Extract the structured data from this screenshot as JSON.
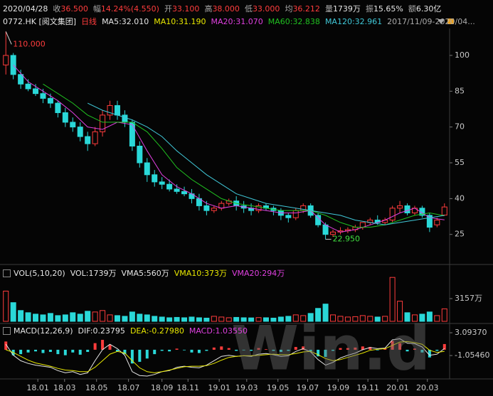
{
  "header": {
    "date": "2020/04/28",
    "quote": [
      {
        "label": "收",
        "value": "36.500",
        "color": "#ff3c3c"
      },
      {
        "label": "幅",
        "value": "14.24%(4.550)",
        "color": "#ff3c3c"
      },
      {
        "label": "开",
        "value": "33.100",
        "color": "#ff3c3c"
      },
      {
        "label": "高",
        "value": "38.000",
        "color": "#ff3c3c"
      },
      {
        "label": "低",
        "value": "33.000",
        "color": "#ff3c3c"
      },
      {
        "label": "均",
        "value": "36.212",
        "color": "#ff3c3c"
      },
      {
        "label": "量",
        "value": "1739万",
        "color": "#e6e6e6"
      },
      {
        "label": "振",
        "value": "15.65%",
        "color": "#e6e6e6"
      },
      {
        "label": "额",
        "value": "6.30亿",
        "color": "#e6e6e6"
      }
    ]
  },
  "watermark": "Win.d",
  "chart_data": [
    {
      "type": "candlestick",
      "symbol": "0772.HK [阅文集团]",
      "period": "日线",
      "range": "2017/11/09-2020/04...",
      "up_color": "#ff3c3c",
      "down_color": "#2ad8d8",
      "open": [
        96,
        100,
        92,
        88,
        86,
        84,
        82,
        80,
        76,
        72,
        70,
        66,
        63,
        68,
        75,
        79,
        75,
        72,
        62,
        55,
        50,
        47,
        46,
        44,
        43,
        42,
        40,
        37,
        35,
        36,
        38,
        39,
        37,
        36,
        35,
        37,
        36,
        35,
        33,
        32,
        35,
        37,
        33,
        29,
        25,
        26,
        26.5,
        27,
        28,
        30,
        31,
        30,
        31,
        36,
        37,
        34,
        36,
        33,
        29,
        33.1
      ],
      "high": [
        110,
        101,
        94,
        90,
        88,
        86,
        84,
        81,
        78,
        74,
        72,
        68,
        70,
        77,
        81,
        81,
        77,
        73,
        64,
        57,
        52,
        49,
        48,
        46,
        45,
        44,
        42,
        39,
        37,
        39,
        40,
        41,
        39,
        38,
        38,
        38,
        37,
        36,
        34,
        36,
        38,
        38,
        34,
        30,
        27,
        28,
        28,
        29,
        30,
        32,
        33,
        32,
        37,
        39,
        38,
        37,
        37,
        34,
        32,
        38
      ],
      "low": [
        92,
        90,
        86,
        85,
        83,
        80,
        78,
        74,
        70,
        68,
        64,
        60,
        62,
        66,
        73,
        73,
        70,
        60,
        53,
        47,
        45,
        44,
        43,
        42,
        41,
        38,
        35,
        33,
        34,
        35,
        37,
        35,
        34,
        33,
        34,
        35,
        33,
        31,
        30,
        31,
        34,
        32,
        28,
        22.95,
        24,
        25,
        25.5,
        26,
        27,
        29,
        29,
        29,
        30,
        34,
        33,
        33,
        32,
        26,
        28,
        33
      ],
      "close": [
        100,
        92,
        88,
        86,
        84,
        82,
        80,
        76,
        72,
        70,
        66,
        63,
        68,
        75,
        79,
        75,
        72,
        62,
        55,
        50,
        47,
        46,
        44,
        43,
        42,
        40,
        37,
        35,
        36,
        38,
        39,
        37,
        36,
        35,
        37,
        36,
        35,
        33,
        32,
        35,
        37,
        33,
        29,
        25,
        26,
        26.5,
        27,
        28,
        30,
        31,
        30,
        31,
        36,
        37,
        34,
        36,
        33,
        28,
        31,
        36.5
      ],
      "max_label": "110.000",
      "min_label": "22.950",
      "xlim": [
        -0.5,
        59.5
      ],
      "xticks": [
        {
          "value": 4.3,
          "label": "18.01"
        },
        {
          "value": 7.9,
          "label": "18.03"
        },
        {
          "value": 12.2,
          "label": "18.05"
        },
        {
          "value": 16.5,
          "label": "18.07"
        },
        {
          "value": 21,
          "label": "18.09"
        },
        {
          "value": 24.5,
          "label": "18.11"
        },
        {
          "value": 28.7,
          "label": "19.01"
        },
        {
          "value": 32.4,
          "label": "19.03"
        },
        {
          "value": 36.6,
          "label": "19.05"
        },
        {
          "value": 40.6,
          "label": "19.07"
        },
        {
          "value": 44.7,
          "label": "19.09"
        },
        {
          "value": 48.7,
          "label": "19.11"
        },
        {
          "value": 52.7,
          "label": "20.01"
        },
        {
          "value": 56.7,
          "label": "20.03"
        }
      ],
      "ylim": [
        13,
        111.3
      ],
      "yticks": [
        25,
        40,
        55,
        70,
        85,
        100
      ],
      "ma_x": [
        1,
        3,
        5,
        7,
        9,
        11,
        13,
        15,
        17,
        19,
        21,
        23,
        25,
        27,
        29,
        31,
        33,
        35,
        37,
        39,
        41,
        43,
        45,
        47,
        49,
        51,
        53,
        55,
        57,
        59
      ],
      "ma": [
        {
          "name": "MA5:32.010",
          "color": "#e6e6e6"
        },
        {
          "name": "MA10:31.190",
          "color": "#e8e800"
        },
        {
          "name": "MA20:31.070",
          "color": "#e040e0",
          "values": [
            96,
            89,
            85,
            81,
            76,
            70,
            69,
            72,
            71,
            60,
            50,
            45,
            42,
            38,
            36,
            37,
            36,
            35,
            34,
            34,
            35,
            29,
            26,
            27,
            29,
            31,
            34,
            36,
            32,
            31.07
          ]
        },
        {
          "name": "MA60:32.838",
          "color": "#20c020",
          "values": [
            null,
            null,
            88,
            84,
            80,
            75,
            72,
            72,
            72,
            68,
            61,
            53,
            48,
            44,
            40,
            38,
            37,
            36,
            35,
            35,
            35,
            33,
            30,
            28,
            28,
            29,
            31,
            33,
            34,
            32.838
          ]
        },
        {
          "name": "MA120:32.961",
          "color": "#40c8d8",
          "values": [
            null,
            null,
            null,
            null,
            null,
            80,
            77,
            75,
            73,
            70,
            66,
            60,
            55,
            50,
            46,
            42,
            40,
            38,
            37,
            36,
            35,
            34,
            33,
            31,
            30,
            29,
            30,
            31,
            32,
            32.961
          ]
        }
      ]
    },
    {
      "type": "bar",
      "title": "VOL(5,10,20)",
      "series": [
        {
          "name": "VOL:1739万",
          "color": "#e6e6e6",
          "values": [
            4200,
            2600,
            1500,
            1200,
            1000,
            900,
            1100,
            800,
            900,
            1200,
            1000,
            1400,
            1300,
            1500,
            900,
            800,
            700,
            1300,
            1000,
            900,
            700,
            600,
            500,
            550,
            500,
            600,
            500,
            450,
            700,
            600,
            500,
            550,
            500,
            480,
            520,
            500,
            450,
            600,
            700,
            900,
            800,
            1100,
            1800,
            2400,
            900,
            700,
            600,
            650,
            800,
            700,
            600,
            700,
            6100,
            2800,
            1200,
            900,
            1000,
            1300,
            800,
            1739
          ]
        },
        {
          "name": "VMA5:560万",
          "color": "#e6e6e6"
        },
        {
          "name": "VMA10:373万",
          "color": "#e8e800"
        },
        {
          "name": "VMA20:294万",
          "color": "#e040e0"
        }
      ],
      "ylim": [
        0,
        6120
      ],
      "yticks": [
        {
          "value": 3157,
          "label": "3157万"
        }
      ]
    },
    {
      "type": "macd",
      "title": "MACD(12,26,9)",
      "series": [
        {
          "name": "DIF:0.23795",
          "color": "#e6e6e6",
          "values": [
            1,
            -1,
            -2,
            -2.5,
            -2.8,
            -3,
            -3.2,
            -3.8,
            -4.2,
            -4,
            -4.5,
            -4.2,
            -2,
            0,
            1,
            0.2,
            -1,
            -4,
            -4.7,
            -4.8,
            -4.5,
            -4,
            -3.8,
            -3.2,
            -3,
            -3.2,
            -3.3,
            -2.8,
            -2,
            -1.2,
            -1,
            -1.2,
            -1.1,
            -1.2,
            -0.8,
            -0.7,
            -0.9,
            -1.2,
            -1.1,
            -0.3,
            0.2,
            -0.4,
            -1.8,
            -2.8,
            -2.3,
            -1.5,
            -1,
            -0.6,
            0,
            0.4,
            0.2,
            0.3,
            1.8,
            2,
            1.2,
            1.1,
            0.5,
            -1,
            -0.8,
            0.23795
          ]
        },
        {
          "name": "DEA:-0.27980",
          "color": "#e8e800",
          "values": [
            0,
            -0.5,
            -1.2,
            -1.9,
            -2.4,
            -2.7,
            -3,
            -3.4,
            -3.7,
            -3.8,
            -4,
            -4,
            -3.2,
            -2,
            -0.8,
            -0.3,
            -0.6,
            -2,
            -3.3,
            -4,
            -4.2,
            -4,
            -3.7,
            -3.4,
            -3.1,
            -3,
            -3,
            -2.9,
            -2.5,
            -1.9,
            -1.4,
            -1.2,
            -1.1,
            -1.1,
            -1,
            -0.9,
            -0.8,
            -0.9,
            -0.9,
            -0.7,
            -0.4,
            -0.3,
            -0.9,
            -1.6,
            -2,
            -1.8,
            -1.4,
            -1,
            -0.6,
            -0.1,
            0.1,
            0.2,
            0.8,
            1.4,
            1.5,
            1.3,
            1,
            -0.1,
            -0.5,
            -0.2798
          ]
        },
        {
          "name": "MACD:1.03550",
          "color": "#e040e0",
          "values": [
            1.5,
            -1,
            -0.8,
            -0.5,
            -0.3,
            -0.6,
            -0.4,
            -0.8,
            -1,
            -0.5,
            -0.9,
            -0.4,
            1.2,
            1.8,
            0.9,
            -0.4,
            -0.8,
            -2.5,
            -2.2,
            -1.6,
            -0.8,
            -0.2,
            -0.3,
            0.2,
            -0.1,
            -0.5,
            -0.6,
            -0.2,
            0.4,
            0.6,
            0.3,
            -0.2,
            -0.1,
            -0.2,
            0.3,
            0.1,
            -0.2,
            -0.4,
            -0.2,
            0.5,
            0.6,
            -0.3,
            -1.2,
            -1.3,
            -0.2,
            0.3,
            0.3,
            0.4,
            0.6,
            0.5,
            -0.1,
            0.3,
            1.6,
            1.2,
            -0.3,
            0.2,
            -0.5,
            -1.4,
            -0.2,
            1.0355
          ]
        }
      ],
      "ylim": [
        -4.93,
        3.1
      ],
      "yticks": [
        {
          "value": 3.0937,
          "label": "3.09370"
        },
        {
          "value": -1.0546,
          "label": "-1.05460"
        }
      ]
    }
  ]
}
